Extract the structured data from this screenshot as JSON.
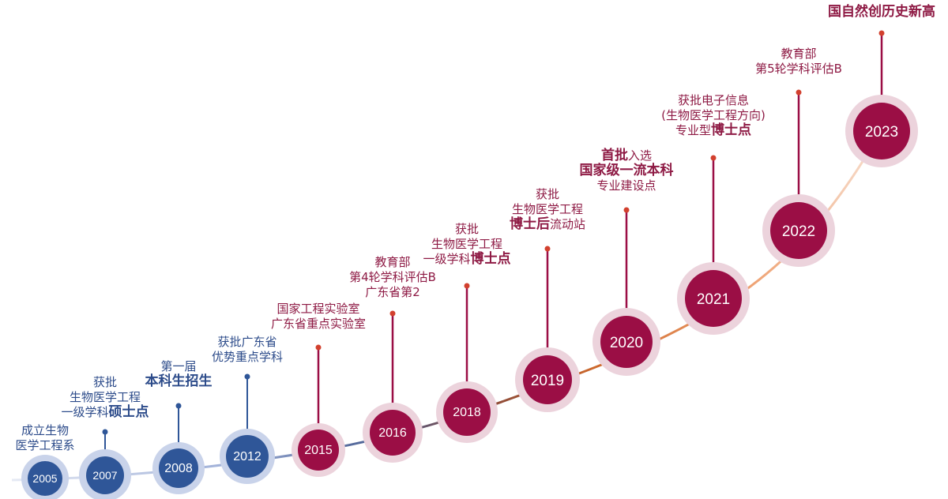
{
  "colors": {
    "blue_node": "#2f5698",
    "blue_halo": "#c9d3ea",
    "blue_text": "#2c4b8a",
    "red_node": "#9b0e45",
    "red_halo": "#ecd3dc",
    "red_text": "#8e1a44"
  },
  "milestones": [
    {
      "year": "2005",
      "theme": "blue",
      "lines": [
        {
          "parts": [
            {
              "t": "成立生物",
              "b": false
            }
          ]
        },
        {
          "parts": [
            {
              "t": "医学工程系",
              "b": false
            }
          ]
        }
      ]
    },
    {
      "year": "2007",
      "theme": "blue",
      "lines": [
        {
          "parts": [
            {
              "t": "获批",
              "b": false
            }
          ]
        },
        {
          "parts": [
            {
              "t": "生物医学工程",
              "b": false
            }
          ]
        },
        {
          "parts": [
            {
              "t": "一级学科",
              "b": false
            },
            {
              "t": "硕士点",
              "b": true
            }
          ]
        }
      ]
    },
    {
      "year": "2008",
      "theme": "blue",
      "lines": [
        {
          "parts": [
            {
              "t": "第一届",
              "b": false
            }
          ]
        },
        {
          "parts": [
            {
              "t": "本科生招生",
              "b": true
            }
          ]
        }
      ]
    },
    {
      "year": "2012",
      "theme": "blue",
      "lines": [
        {
          "parts": [
            {
              "t": "获批广东省",
              "b": false
            }
          ]
        },
        {
          "parts": [
            {
              "t": "优势重点学科",
              "b": false
            }
          ]
        }
      ]
    },
    {
      "year": "2015",
      "theme": "red",
      "lines": [
        {
          "parts": [
            {
              "t": "国家工程实验室",
              "b": false
            }
          ]
        },
        {
          "parts": [
            {
              "t": "广东省重点实验室",
              "b": false
            }
          ]
        }
      ]
    },
    {
      "year": "2016",
      "theme": "red",
      "lines": [
        {
          "parts": [
            {
              "t": "教育部",
              "b": false
            }
          ]
        },
        {
          "parts": [
            {
              "t": "第4轮学科评估B",
              "b": false
            }
          ]
        },
        {
          "parts": [
            {
              "t": "广东省第2",
              "b": false
            }
          ]
        }
      ]
    },
    {
      "year": "2018",
      "theme": "red",
      "lines": [
        {
          "parts": [
            {
              "t": "获批",
              "b": false
            }
          ]
        },
        {
          "parts": [
            {
              "t": "生物医学工程",
              "b": false
            }
          ]
        },
        {
          "parts": [
            {
              "t": "一级学科",
              "b": false
            },
            {
              "t": "博士点",
              "b": true
            }
          ]
        }
      ]
    },
    {
      "year": "2019",
      "theme": "red",
      "lines": [
        {
          "parts": [
            {
              "t": "获批",
              "b": false
            }
          ]
        },
        {
          "parts": [
            {
              "t": "生物医学工程",
              "b": false
            }
          ]
        },
        {
          "parts": [
            {
              "t": "博士后",
              "b": true
            },
            {
              "t": "流动站",
              "b": false
            }
          ]
        }
      ]
    },
    {
      "year": "2020",
      "theme": "red",
      "lines": [
        {
          "parts": [
            {
              "t": "首批",
              "b": true
            },
            {
              "t": "入选",
              "b": false
            }
          ]
        },
        {
          "parts": [
            {
              "t": "国家级一流本科",
              "b": true
            }
          ]
        },
        {
          "parts": [
            {
              "t": "专业建设点",
              "b": false
            }
          ]
        }
      ]
    },
    {
      "year": "2021",
      "theme": "red",
      "lines": [
        {
          "parts": [
            {
              "t": "获批电子信息",
              "b": false
            }
          ]
        },
        {
          "parts": [
            {
              "t": "(生物医学工程方向)",
              "b": false
            }
          ]
        },
        {
          "parts": [
            {
              "t": "专业型",
              "b": false
            },
            {
              "t": "博士点",
              "b": true
            }
          ]
        }
      ]
    },
    {
      "year": "2022",
      "theme": "red",
      "lines": [
        {
          "parts": [
            {
              "t": "教育部",
              "b": false
            }
          ]
        },
        {
          "parts": [
            {
              "t": "第5轮学科评估B",
              "b": false
            }
          ]
        }
      ]
    },
    {
      "year": "2023",
      "theme": "red",
      "lines": [
        {
          "parts": [
            {
              "t": "国自然创历史新高",
              "b": true
            }
          ]
        }
      ]
    }
  ]
}
